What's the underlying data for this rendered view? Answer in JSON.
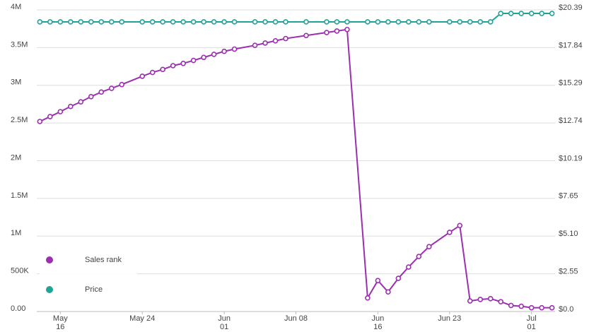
{
  "chart_data": {
    "type": "line",
    "x": [
      14,
      15,
      16,
      17,
      18,
      19,
      20,
      21,
      22,
      24,
      25,
      26,
      27,
      28,
      29,
      30,
      31,
      32,
      33,
      35,
      36,
      37,
      38,
      40,
      42,
      43,
      44,
      46,
      47,
      48,
      49,
      50,
      51,
      52,
      54,
      55,
      56,
      57,
      58,
      59,
      60,
      61,
      62,
      63,
      64
    ],
    "series": [
      {
        "name": "Sales rank",
        "color": "#9c2fb0",
        "values": [
          2520000,
          2585000,
          2650000,
          2720000,
          2780000,
          2850000,
          2910000,
          2960000,
          3010000,
          3120000,
          3170000,
          3210000,
          3260000,
          3290000,
          3330000,
          3370000,
          3410000,
          3450000,
          3480000,
          3530000,
          3560000,
          3590000,
          3620000,
          3660000,
          3700000,
          3720000,
          3740000,
          180000,
          410000,
          260000,
          440000,
          590000,
          730000,
          860000,
          1050000,
          1140000,
          140000,
          160000,
          170000,
          130000,
          80000,
          70000,
          50000,
          50000,
          50000
        ]
      },
      {
        "name": "Price",
        "color": "#21a396",
        "axis": "y2",
        "values": [
          19.58,
          19.58,
          19.58,
          19.58,
          19.58,
          19.58,
          19.58,
          19.58,
          19.58,
          19.58,
          19.58,
          19.58,
          19.58,
          19.58,
          19.58,
          19.58,
          19.58,
          19.58,
          19.58,
          19.58,
          19.58,
          19.58,
          19.58,
          19.58,
          19.58,
          19.58,
          19.58,
          19.58,
          19.58,
          19.58,
          19.58,
          19.58,
          19.58,
          19.58,
          19.58,
          19.58,
          19.58,
          19.58,
          19.58,
          20.15,
          20.15,
          20.15,
          20.15,
          20.15,
          20.15
        ]
      }
    ],
    "xlim": [
      13.7,
      64.3
    ],
    "xticks": [
      {
        "value": 16,
        "label": "May\n16"
      },
      {
        "value": 24,
        "label": "May 24"
      },
      {
        "value": 32,
        "label": "Jun\n01"
      },
      {
        "value": 39,
        "label": "Jun 08"
      },
      {
        "value": 47,
        "label": "Jun\n16"
      },
      {
        "value": 54,
        "label": "Jun 23"
      },
      {
        "value": 62,
        "label": "Jul\n01"
      }
    ],
    "ylim": [
      0,
      4000000
    ],
    "yticks": [
      {
        "value": 0,
        "label": "0.00"
      },
      {
        "value": 500000,
        "label": "500K"
      },
      {
        "value": 1000000,
        "label": "1M"
      },
      {
        "value": 1500000,
        "label": "1.5M"
      },
      {
        "value": 2000000,
        "label": "2M"
      },
      {
        "value": 2500000,
        "label": "2.5M"
      },
      {
        "value": 3000000,
        "label": "3M"
      },
      {
        "value": 3500000,
        "label": "3.5M"
      },
      {
        "value": 4000000,
        "label": "4M"
      }
    ],
    "y2lim": [
      0,
      20.39
    ],
    "y2ticks": [
      {
        "value": 0,
        "label": "$0.0"
      },
      {
        "value": 2.55,
        "label": "$2.55"
      },
      {
        "value": 5.1,
        "label": "$5.10"
      },
      {
        "value": 7.65,
        "label": "$7.65"
      },
      {
        "value": 10.19,
        "label": "$10.19"
      },
      {
        "value": 12.74,
        "label": "$12.74"
      },
      {
        "value": 15.29,
        "label": "$15.29"
      },
      {
        "value": 17.84,
        "label": "$17.84"
      },
      {
        "value": 20.39,
        "label": "$20.39"
      }
    ],
    "grid": true,
    "legend": "lower left"
  }
}
